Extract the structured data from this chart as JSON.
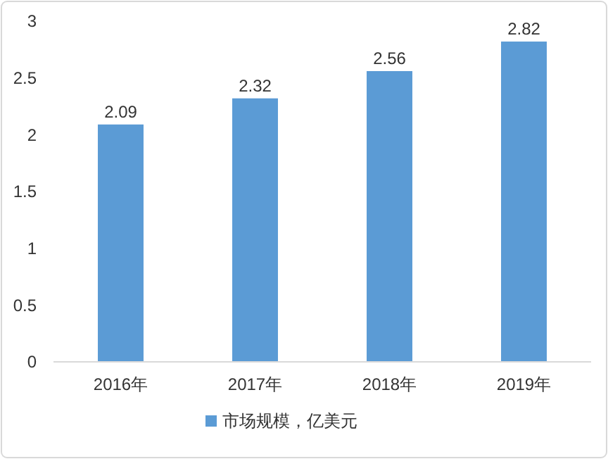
{
  "chart_data": {
    "type": "bar",
    "categories": [
      "2016年",
      "2017年",
      "2018年",
      "2019年"
    ],
    "series": [
      {
        "name": "市场规模，亿美元",
        "color": "#5b9bd5",
        "values": [
          2.09,
          2.32,
          2.56,
          2.82
        ]
      }
    ],
    "ylim": [
      0,
      3
    ],
    "yticks": [
      0,
      0.5,
      1,
      1.5,
      2,
      2.5,
      3
    ],
    "data_labels": true,
    "legend": "bottom",
    "grid": false
  }
}
